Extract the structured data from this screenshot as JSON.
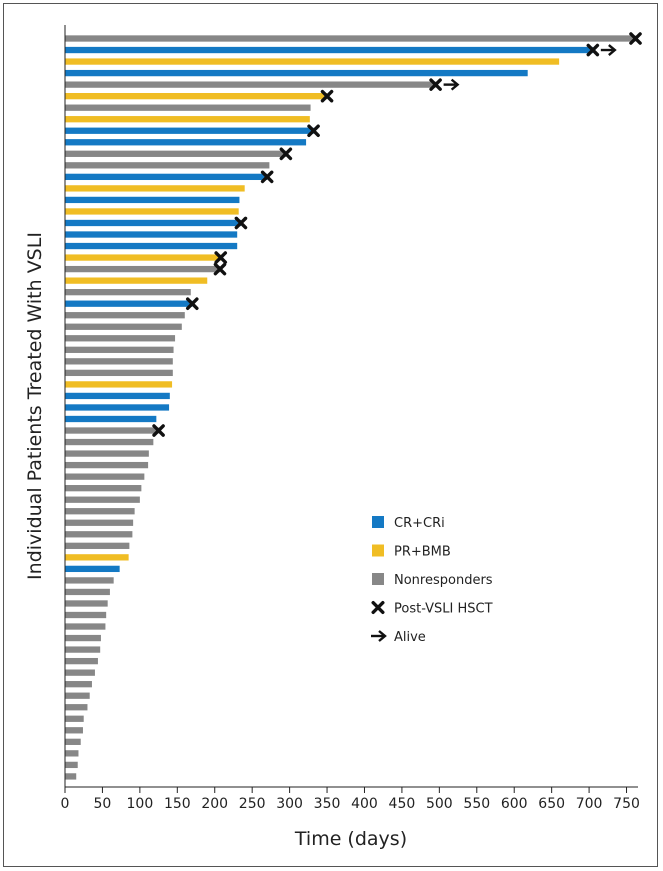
{
  "colors": {
    "cr": "#1479c4",
    "pr": "#f0bd24",
    "nr": "#878787",
    "marker": "#111111"
  },
  "chart_data": {
    "type": "bar",
    "orientation": "horizontal",
    "xlabel": "Time (days)",
    "ylabel": "Individual Patients Treated With VSLI",
    "xlim": [
      0,
      770
    ],
    "xticks": [
      0,
      50,
      100,
      150,
      200,
      250,
      300,
      350,
      400,
      450,
      500,
      550,
      600,
      650,
      700,
      750
    ],
    "grid": false,
    "legend_position": "right-middle",
    "legend": [
      {
        "label": "CR+CRi",
        "kind": "swatch",
        "key": "cr"
      },
      {
        "label": "PR+BMB",
        "kind": "swatch",
        "key": "pr"
      },
      {
        "label": "Nonresponders",
        "kind": "swatch",
        "key": "nr"
      },
      {
        "label": "Post-VSLI HSCT",
        "kind": "cross"
      },
      {
        "label": "Alive",
        "kind": "arrow"
      }
    ],
    "bars": [
      {
        "v": 762,
        "g": "nr",
        "hsct": true
      },
      {
        "v": 705,
        "g": "cr",
        "hsct": true,
        "alive": true
      },
      {
        "v": 660,
        "g": "pr"
      },
      {
        "v": 618,
        "g": "cr"
      },
      {
        "v": 495,
        "g": "nr",
        "hsct": true,
        "alive": true
      },
      {
        "v": 350,
        "g": "pr",
        "hsct": true
      },
      {
        "v": 328,
        "g": "nr"
      },
      {
        "v": 327,
        "g": "pr"
      },
      {
        "v": 332,
        "g": "cr",
        "hsct": true
      },
      {
        "v": 322,
        "g": "cr"
      },
      {
        "v": 295,
        "g": "nr",
        "hsct": true
      },
      {
        "v": 273,
        "g": "nr"
      },
      {
        "v": 270,
        "g": "cr",
        "hsct": true
      },
      {
        "v": 240,
        "g": "pr"
      },
      {
        "v": 233,
        "g": "cr"
      },
      {
        "v": 232,
        "g": "pr"
      },
      {
        "v": 235,
        "g": "cr",
        "hsct": true
      },
      {
        "v": 230,
        "g": "cr"
      },
      {
        "v": 230,
        "g": "cr"
      },
      {
        "v": 208,
        "g": "pr",
        "hsct": true
      },
      {
        "v": 207,
        "g": "nr",
        "hsct": true
      },
      {
        "v": 190,
        "g": "pr"
      },
      {
        "v": 168,
        "g": "nr"
      },
      {
        "v": 170,
        "g": "cr",
        "hsct": true
      },
      {
        "v": 160,
        "g": "nr"
      },
      {
        "v": 156,
        "g": "nr"
      },
      {
        "v": 147,
        "g": "nr"
      },
      {
        "v": 145,
        "g": "nr"
      },
      {
        "v": 144,
        "g": "nr"
      },
      {
        "v": 144,
        "g": "nr"
      },
      {
        "v": 143,
        "g": "pr"
      },
      {
        "v": 140,
        "g": "cr"
      },
      {
        "v": 139,
        "g": "cr"
      },
      {
        "v": 122,
        "g": "cr"
      },
      {
        "v": 125,
        "g": "nr",
        "hsct": true
      },
      {
        "v": 118,
        "g": "nr"
      },
      {
        "v": 112,
        "g": "nr"
      },
      {
        "v": 111,
        "g": "nr"
      },
      {
        "v": 106,
        "g": "nr"
      },
      {
        "v": 102,
        "g": "nr"
      },
      {
        "v": 100,
        "g": "nr"
      },
      {
        "v": 93,
        "g": "nr"
      },
      {
        "v": 91,
        "g": "nr"
      },
      {
        "v": 90,
        "g": "nr"
      },
      {
        "v": 86,
        "g": "nr"
      },
      {
        "v": 85,
        "g": "pr"
      },
      {
        "v": 73,
        "g": "cr"
      },
      {
        "v": 65,
        "g": "nr"
      },
      {
        "v": 60,
        "g": "nr"
      },
      {
        "v": 57,
        "g": "nr"
      },
      {
        "v": 55,
        "g": "nr"
      },
      {
        "v": 54,
        "g": "nr"
      },
      {
        "v": 48,
        "g": "nr"
      },
      {
        "v": 47,
        "g": "nr"
      },
      {
        "v": 44,
        "g": "nr"
      },
      {
        "v": 40,
        "g": "nr"
      },
      {
        "v": 36,
        "g": "nr"
      },
      {
        "v": 33,
        "g": "nr"
      },
      {
        "v": 30,
        "g": "nr"
      },
      {
        "v": 25,
        "g": "nr"
      },
      {
        "v": 24,
        "g": "nr"
      },
      {
        "v": 21,
        "g": "nr"
      },
      {
        "v": 18,
        "g": "nr"
      },
      {
        "v": 17,
        "g": "nr"
      },
      {
        "v": 15,
        "g": "nr"
      }
    ]
  }
}
